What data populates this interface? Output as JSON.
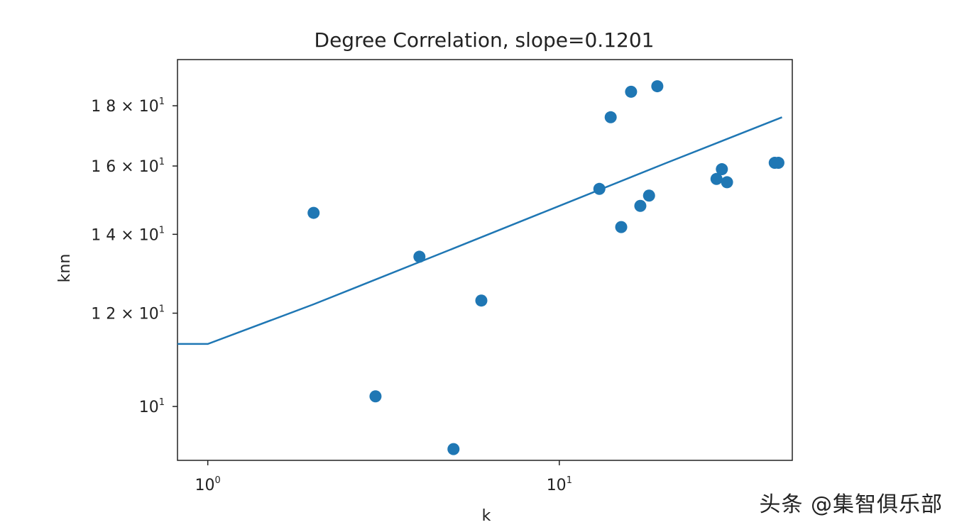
{
  "chart_data": {
    "type": "scatter",
    "title": "Degree Correlation, slope=0.1201",
    "xlabel": "k",
    "ylabel": "knn",
    "x_scale": "log",
    "y_scale": "log",
    "xlim": [
      0.82,
      46
    ],
    "ylim": [
      9.0,
      19.7
    ],
    "x_ticks": [
      {
        "value": 1,
        "mantissa": "",
        "base": "10",
        "exponent": "0"
      },
      {
        "value": 10,
        "mantissa": "",
        "base": "10",
        "exponent": "1"
      }
    ],
    "y_ticks": [
      {
        "value": 10,
        "mantissa": "",
        "base": "10",
        "exponent": "1"
      },
      {
        "value": 12,
        "mantissa": "1 2 × ",
        "base": "10",
        "exponent": "1"
      },
      {
        "value": 14,
        "mantissa": "1 4 × ",
        "base": "10",
        "exponent": "1"
      },
      {
        "value": 16,
        "mantissa": "1 6 × ",
        "base": "10",
        "exponent": "1"
      },
      {
        "value": 18,
        "mantissa": "1 8 × ",
        "base": "10",
        "exponent": "1"
      }
    ],
    "series": [
      {
        "name": "knn",
        "kind": "scatter",
        "color": "#1f77b4",
        "x": [
          2,
          3,
          4,
          5,
          6,
          13,
          14,
          15,
          16,
          17,
          18,
          19,
          28,
          29,
          30,
          41,
          42
        ],
        "y": [
          14.6,
          10.2,
          13.4,
          9.2,
          12.3,
          15.3,
          17.6,
          14.2,
          18.5,
          14.8,
          15.1,
          18.7,
          15.6,
          15.9,
          15.5,
          16.1,
          16.1
        ]
      },
      {
        "name": "fit",
        "kind": "line",
        "color": "#1f77b4",
        "x": [
          0.82,
          1.0,
          2,
          5,
          10,
          20,
          43
        ],
        "y": [
          11.3,
          11.3,
          12.21,
          13.62,
          14.8,
          16.08,
          17.6
        ]
      }
    ]
  },
  "watermark": "头条 @集智俱乐部"
}
